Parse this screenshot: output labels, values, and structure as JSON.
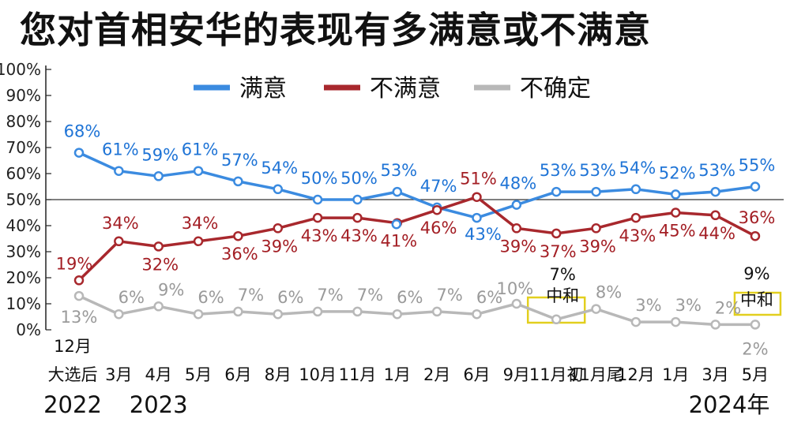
{
  "title": "您对首相安华的表现有多满意或不满意",
  "chart_data": {
    "type": "line",
    "title": "您对首相安华的表现有多满意或不满意",
    "ylim": [
      0,
      100
    ],
    "yticks": [
      "0%",
      "10%",
      "20%",
      "30%",
      "40%",
      "50%",
      "60%",
      "70%",
      "80%",
      "90%",
      "100%"
    ],
    "reference_line": 50,
    "legend_position": "top",
    "categories": [
      "12月 大选后",
      "3月",
      "4月",
      "5月",
      "6月",
      "8月",
      "10月",
      "11月",
      "1月",
      "2月",
      "6月",
      "9月",
      "11月初",
      "11月尾",
      "12月",
      "1月",
      "3月",
      "5月"
    ],
    "category_lines": [
      [
        "12月",
        "大选后"
      ],
      [
        "3月"
      ],
      [
        "4月"
      ],
      [
        "5月"
      ],
      [
        "6月"
      ],
      [
        "8月"
      ],
      [
        "10月"
      ],
      [
        "11月"
      ],
      [
        "1月"
      ],
      [
        "2月"
      ],
      [
        "6月"
      ],
      [
        "9月"
      ],
      [
        "11月初"
      ],
      [
        "11月尾"
      ],
      [
        "12月"
      ],
      [
        "1月"
      ],
      [
        "3月"
      ],
      [
        "5月"
      ]
    ],
    "years": [
      {
        "label": "2022",
        "category_index": 0
      },
      {
        "label": "2023",
        "category_index": 2
      },
      {
        "label": "2024年",
        "category_index": 16
      }
    ],
    "series": [
      {
        "name": "满意",
        "color": "#3b8be0",
        "label_color": "#1f74d6",
        "values": [
          68,
          61,
          59,
          61,
          57,
          54,
          50,
          50,
          53,
          47,
          43,
          48,
          53,
          53,
          54,
          52,
          53,
          55
        ],
        "labels": [
          "68%",
          "61%",
          "59%",
          "61%",
          "57%",
          "54%",
          "50%",
          "50%",
          "53%",
          "47%",
          "43%",
          "48%",
          "53%",
          "53%",
          "54%",
          "52%",
          "53%",
          "55%"
        ]
      },
      {
        "name": "不满意",
        "color": "#a8282d",
        "label_color": "#a31e24",
        "values": [
          19,
          34,
          32,
          34,
          36,
          39,
          43,
          43,
          41,
          46,
          51,
          39,
          37,
          39,
          43,
          45,
          44,
          36
        ],
        "labels": [
          "19%",
          "34%",
          "32%",
          "34%",
          "36%",
          "39%",
          "43%",
          "43%",
          "41%",
          "46%",
          "51%",
          "39%",
          "37%",
          "39%",
          "43%",
          "45%",
          "44%",
          "36%"
        ]
      },
      {
        "name": "不确定",
        "color": "#b8b8b8",
        "label_color": "#9a9a9a",
        "values": [
          13,
          6,
          9,
          6,
          7,
          6,
          7,
          7,
          6,
          7,
          6,
          10,
          4,
          8,
          3,
          3,
          2,
          2
        ],
        "labels": [
          "13%",
          "6%",
          "9%",
          "6%",
          "7%",
          "6%",
          "7%",
          "7%",
          "6%",
          "7%",
          "6%",
          "10%",
          "",
          "8%",
          "3%",
          "3%",
          "2%",
          "2%"
        ]
      }
    ],
    "extra_marker": {
      "series": "满意",
      "category_index": 8,
      "value": 46
    },
    "neutral": [
      {
        "category_index": 12,
        "value_label": "7%",
        "label": "中和"
      },
      {
        "category_index": 17,
        "value_label": "9%",
        "label": "中和"
      }
    ]
  }
}
